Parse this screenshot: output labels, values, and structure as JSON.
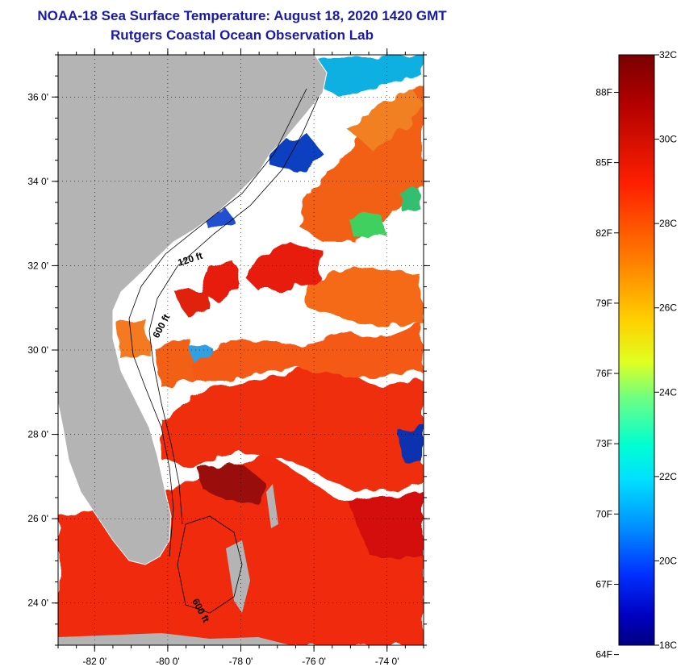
{
  "header": {
    "title": "NOAA-18 Sea Surface Temperature:  August 18, 2020 1420 GMT",
    "subtitle": "Rutgers Coastal Ocean Observation Lab"
  },
  "map": {
    "lon_range": [
      -83,
      -73
    ],
    "lat_range": [
      23,
      37
    ],
    "lon_ticks": [
      {
        "value": -82,
        "label": "-82 0'"
      },
      {
        "value": -80,
        "label": "-80 0'"
      },
      {
        "value": -78,
        "label": "-78 0'"
      },
      {
        "value": -76,
        "label": "-76 0'"
      },
      {
        "value": -74,
        "label": "-74 0'"
      }
    ],
    "lat_ticks": [
      {
        "value": 24,
        "label": "24 0'"
      },
      {
        "value": 26,
        "label": "26 0'"
      },
      {
        "value": 28,
        "label": "28 0'"
      },
      {
        "value": 30,
        "label": "30 0'"
      },
      {
        "value": 32,
        "label": "32 0'"
      },
      {
        "value": 34,
        "label": "34 0'"
      },
      {
        "value": 36,
        "label": "36 0'"
      }
    ],
    "contour_labels": [
      "120 ft",
      "600 ft",
      "600 ft"
    ],
    "land_color": "#b4b4b4",
    "cloud_color": "#ffffff"
  },
  "colorbar": {
    "celsius_labels": [
      "32C",
      "30C",
      "28C",
      "26C",
      "24C",
      "22C",
      "20C",
      "18C"
    ],
    "fahrenheit_labels": [
      "88F",
      "85F",
      "82F",
      "79F",
      "76F",
      "73F",
      "70F",
      "67F",
      "64F"
    ],
    "range_c": [
      18,
      32
    ]
  }
}
